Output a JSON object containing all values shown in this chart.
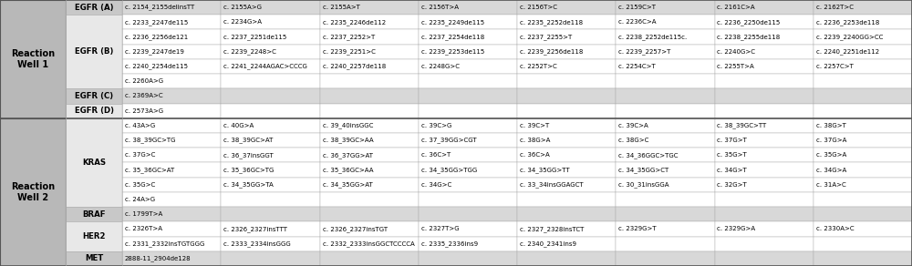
{
  "reaction_well_1": {
    "label": "Reaction\nWell 1",
    "genes": [
      {
        "name": "EGFR (A)",
        "name_bg": "#c8c8c8",
        "data_bg": "#d8d8d8",
        "rows": [
          [
            "c. 2154_2155delinsTT",
            "c. 2155A>G",
            "c. 2155A>T",
            "c. 2156T>A",
            "c. 2156T>C",
            "c. 2159C>T",
            "c. 2161C>A",
            "c. 2162T>C"
          ]
        ]
      },
      {
        "name": "EGFR (B)",
        "name_bg": "#e8e8e8",
        "data_bg": "#ffffff",
        "rows": [
          [
            "c. 2233_2247de115",
            "c. 2234G>A",
            "c. 2235_2246de112",
            "c. 2235_2249de115",
            "c. 2235_2252de118",
            "c. 2236C>A",
            "c. 2236_2250de115",
            "c. 2236_2253de118"
          ],
          [
            "c. 2236_2256de121",
            "c. 2237_2251de115",
            "c. 2237_2252>T",
            "c. 2237_2254de118",
            "c. 2237_2255>T",
            "c. 2238_2252de115c.",
            "c. 2238_2255de118",
            "c. 2239_2240GG>CC"
          ],
          [
            "c. 2239_2247de19",
            "c. 2239_2248>C",
            "c. 2239_2251>C",
            "c. 2239_2253de115",
            "c. 2239_2256de118",
            "c. 2239_2257>T",
            "c. 2240G>C",
            "c. 2240_2251de112"
          ],
          [
            "c. 2240_2254de115",
            "c. 2241_2244AGAC>CCCG",
            "c. 2240_2257de118",
            "c. 2248G>C",
            "c. 2252T>C",
            "c. 2254C>T",
            "c. 2255T>A",
            "c. 2257C>T"
          ],
          [
            "c. 2260A>G",
            "",
            "",
            "",
            "",
            "",
            "",
            ""
          ]
        ]
      },
      {
        "name": "EGFR (C)",
        "name_bg": "#c8c8c8",
        "data_bg": "#d8d8d8",
        "rows": [
          [
            "c. 2369A>C",
            "",
            "",
            "",
            "",
            "",
            "",
            ""
          ]
        ]
      },
      {
        "name": "EGFR (D)",
        "name_bg": "#e8e8e8",
        "data_bg": "#ffffff",
        "rows": [
          [
            "c. 2573A>G",
            "",
            "",
            "",
            "",
            "",
            "",
            ""
          ]
        ]
      }
    ]
  },
  "reaction_well_2": {
    "label": "Reaction\nWell 2",
    "genes": [
      {
        "name": "KRAS",
        "name_bg": "#e8e8e8",
        "data_bg": "#ffffff",
        "rows": [
          [
            "c. 43A>G",
            "c. 40G>A",
            "c. 39_40insGGC",
            "c. 39C>G",
            "c. 39C>T",
            "c. 39C>A",
            "c. 38_39GC>TT",
            "c. 38G>T"
          ],
          [
            "c. 38_39GC>TG",
            "c. 38_39GC>AT",
            "c. 38_39GC>AA",
            "c. 37_39GG>CGT",
            "c. 38G>A",
            "c. 38G>C",
            "c. 37G>T",
            "c. 37G>A"
          ],
          [
            "c. 37G>C",
            "c. 36_37insGGT",
            "c. 36_37GG>AT",
            "c. 36C>T",
            "c. 36C>A",
            "c. 34_36GGC>TGC",
            "c. 35G>T",
            "c. 35G>A"
          ],
          [
            "c. 35_36GC>AT",
            "c. 35_36GC>TG",
            "c. 35_36GC>AA",
            "c. 34_35GG>TGG",
            "c. 34_35GG>TT",
            "c. 34_35GG>CT",
            "c. 34G>T",
            "c. 34G>A"
          ],
          [
            "c. 35G>C",
            "c. 34_35GG>TA",
            "c. 34_35GG>AT",
            "c. 34G>C",
            "c. 33_34insGGAGCT",
            "c. 30_31insGGA",
            "c. 32G>T",
            "c. 31A>C"
          ],
          [
            "c. 24A>G",
            "",
            "",
            "",
            "",
            "",
            "",
            ""
          ]
        ]
      },
      {
        "name": "BRAF",
        "name_bg": "#c8c8c8",
        "data_bg": "#d8d8d8",
        "rows": [
          [
            "c. 1799T>A",
            "",
            "",
            "",
            "",
            "",
            "",
            ""
          ]
        ]
      },
      {
        "name": "HER2",
        "name_bg": "#e8e8e8",
        "data_bg": "#ffffff",
        "rows": [
          [
            "c. 2326T>A",
            "c. 2326_2327insTTT",
            "c. 2326_2327insTGT",
            "c. 2327T>G",
            "c. 2327_2328insTCT",
            "c. 2329G>T",
            "c. 2329G>A",
            "c. 2330A>C"
          ],
          [
            "c. 2331_2332insTGTGGG",
            "c. 2333_2334insGGG",
            "c. 2332_2333insGGCTCCCCA",
            "c. 2335_2336ins9",
            "c. 2340_2341ins9",
            "",
            "",
            ""
          ]
        ]
      },
      {
        "name": "MET",
        "name_bg": "#c8c8c8",
        "data_bg": "#d8d8d8",
        "rows": [
          [
            "2888-11_2904de128",
            "",
            "",
            "",
            "",
            "",
            "",
            ""
          ]
        ]
      }
    ]
  },
  "well_label_bg": "#b8b8b8",
  "font_size": 5.0,
  "label_font_size": 7.0,
  "gene_font_size": 6.2,
  "border_color_outer": "#555555",
  "border_color_inner": "#aaaaaa",
  "border_color_section": "#555555"
}
